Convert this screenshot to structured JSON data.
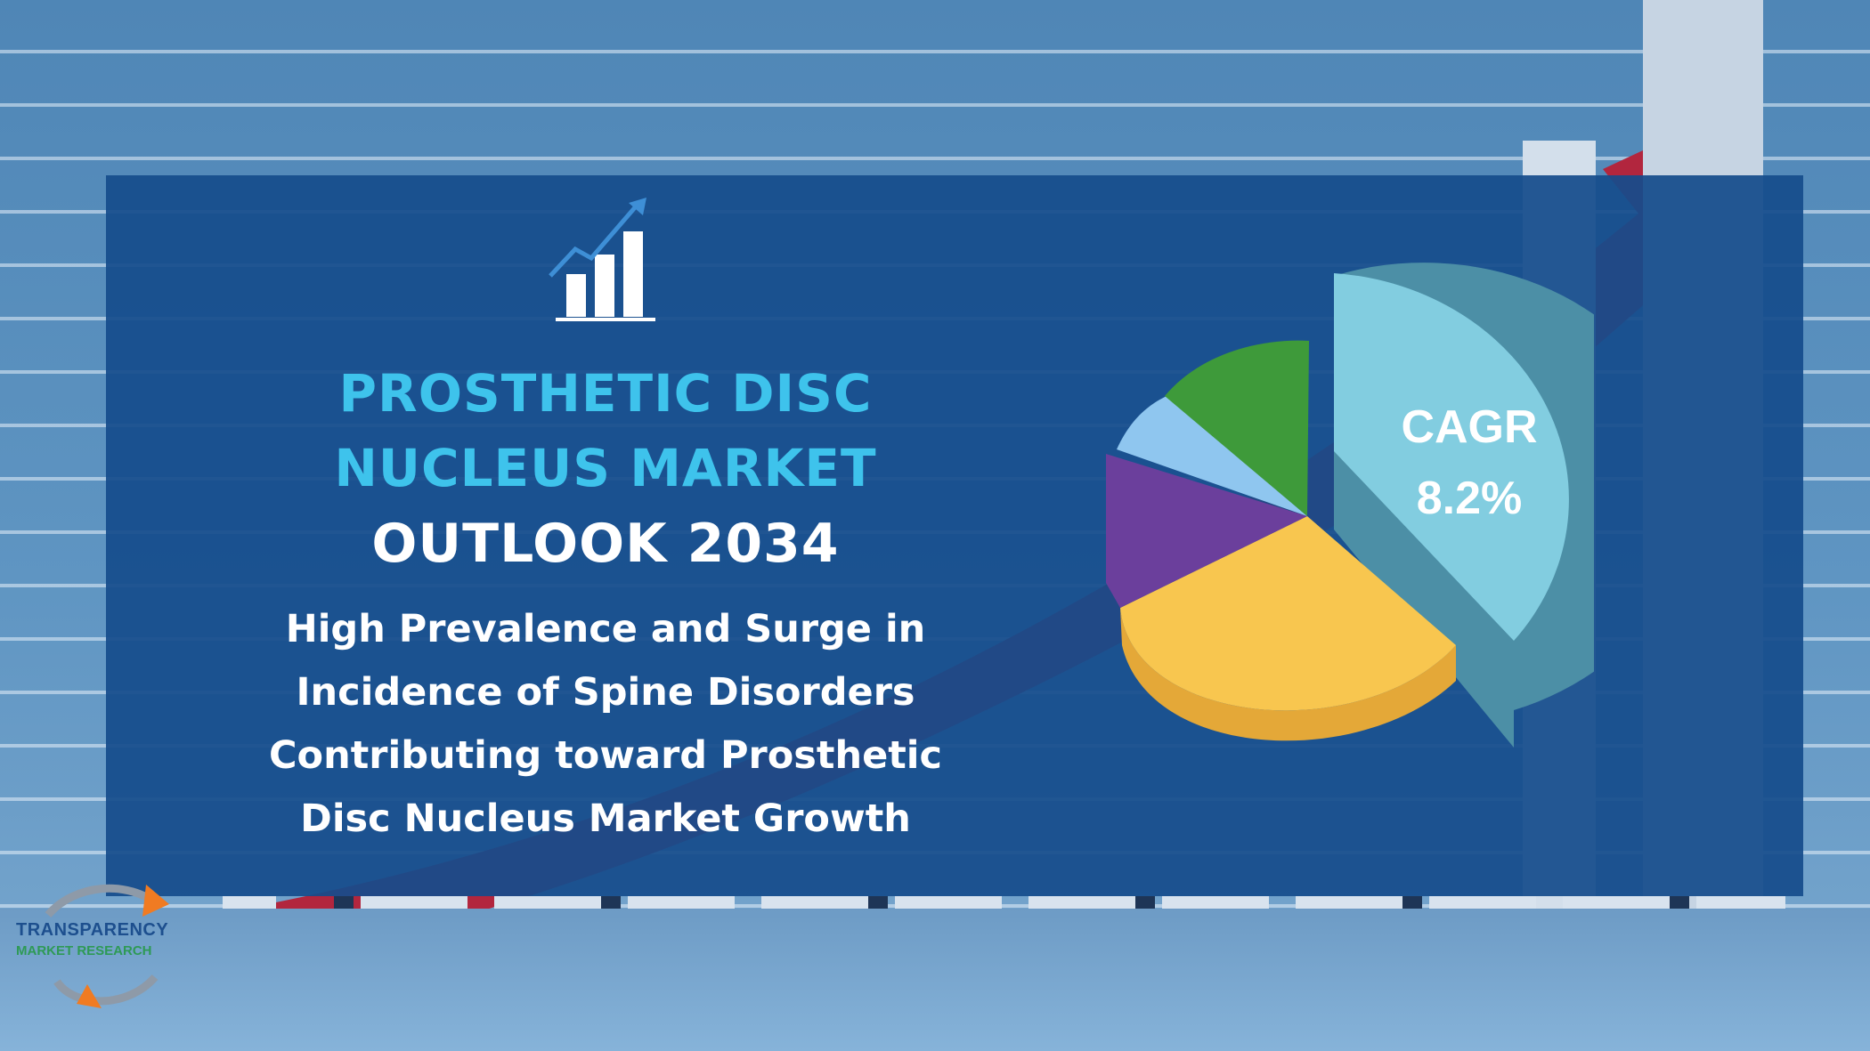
{
  "title": {
    "line1": "PROSTHETIC DISC",
    "line2": "NUCLEUS MARKET",
    "line3": "OUTLOOK 2034"
  },
  "subtitle": "High Prevalence and Surge in Incidence of Spine Disorders Contributing toward Prosthetic Disc Nucleus Market Growth",
  "cagr": {
    "label": "CAGR",
    "value": "8.2%"
  },
  "logo": {
    "name": "TRANSPARENCY",
    "tagline": "MARKET RESEARCH"
  },
  "colors": {
    "title_accent": "#3ec3ec",
    "panel": "#154c8c",
    "pie_teal": "#7ec9d9",
    "pie_yellow": "#f7c14d",
    "pie_purple": "#6b3f9c",
    "pie_lightblue": "#8fc6ef",
    "pie_green": "#3e9a3a",
    "arrow_red": "#b2263e"
  },
  "icons": [
    "growth-chart-icon",
    "pie-chart-graphic",
    "company-logo-icon"
  ]
}
